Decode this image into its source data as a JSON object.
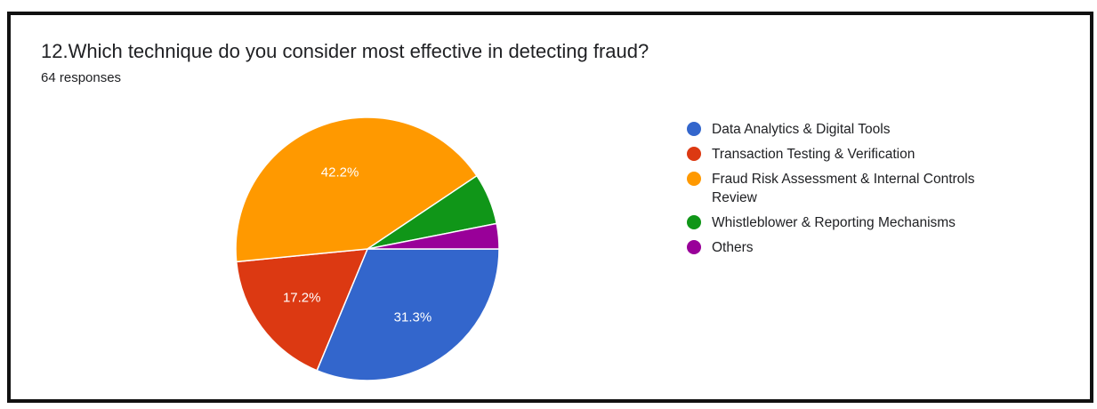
{
  "header": {
    "title": "12.Which technique do you consider most effective in detecting fraud?",
    "responses": "64 responses"
  },
  "chart_data": {
    "type": "pie",
    "categories": [
      "Data Analytics & Digital Tools",
      "Transaction Testing & Verification",
      "Fraud Risk Assessment & Internal Controls Review",
      "Whistleblower & Reporting Mechanisms",
      "Others"
    ],
    "values": [
      31.3,
      17.2,
      42.2,
      6.3,
      3.1
    ],
    "labels": [
      "31.3%",
      "17.2%",
      "42.2%",
      "",
      ""
    ],
    "colors": [
      "#3366cc",
      "#dc3912",
      "#ff9900",
      "#109618",
      "#990099"
    ],
    "legend_position": "right",
    "start": "right-horizontal",
    "direction": "clockwise"
  }
}
